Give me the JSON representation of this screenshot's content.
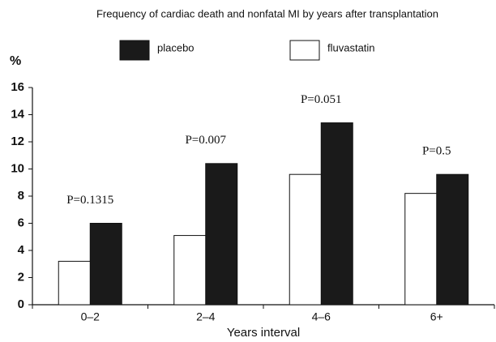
{
  "chart_data": {
    "type": "bar",
    "title": "Frequency of cardiac death and nonfatal MI by years after transplantation",
    "y_label": "%",
    "x_label": "Years interval",
    "categories": [
      "0–2",
      "2–4",
      "4–6",
      "6+"
    ],
    "series": [
      {
        "name": "placebo",
        "color": "#1a1a1a",
        "values": [
          6.0,
          10.4,
          13.4,
          9.6
        ]
      },
      {
        "name": "fluvastatin",
        "color": "#ffffff",
        "values": [
          3.2,
          5.1,
          9.6,
          8.2
        ]
      }
    ],
    "annotations": [
      "P=0.1315",
      "P=0.007",
      "P=0.051",
      "P=0.5"
    ],
    "ylim": [
      0,
      16
    ],
    "yticks": [
      0,
      2,
      4,
      6,
      8,
      10,
      12,
      14,
      16
    ]
  }
}
